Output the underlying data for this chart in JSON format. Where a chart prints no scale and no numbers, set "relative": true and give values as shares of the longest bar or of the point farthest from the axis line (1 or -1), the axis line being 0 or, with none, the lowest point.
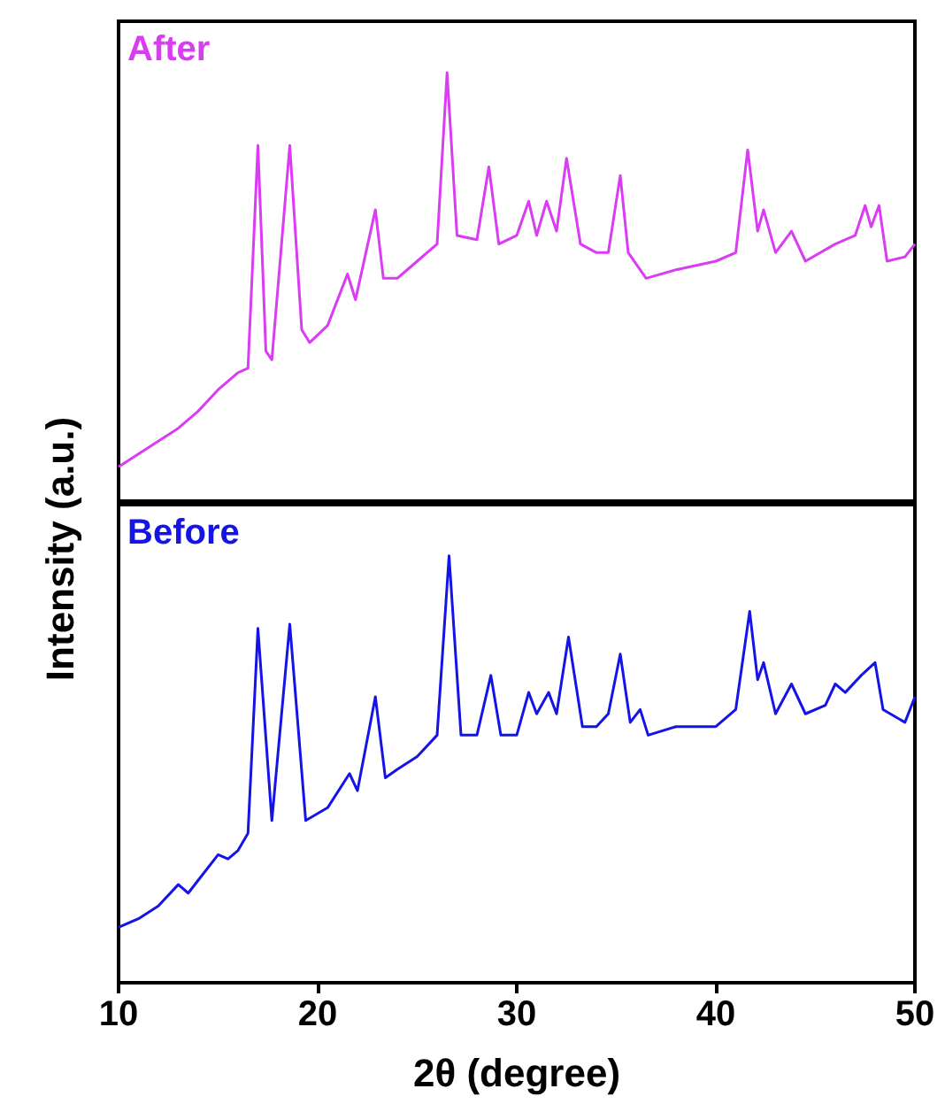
{
  "chart_data": [
    {
      "type": "line",
      "relative": true,
      "ylabel": "Intensity (a.u.)",
      "xlim": [
        10,
        50
      ],
      "xticks": [
        10,
        20,
        30,
        40,
        50
      ],
      "tick_labels": false,
      "x": [
        10,
        11,
        12,
        13,
        14,
        15,
        16,
        16.5,
        17,
        17.4,
        17.7,
        18.6,
        19.2,
        19.6,
        20.5,
        21.5,
        21.9,
        22.9,
        23.3,
        24,
        25,
        26,
        26.5,
        27,
        28,
        28.6,
        29.1,
        30,
        30.6,
        31,
        31.5,
        32,
        32.5,
        33.2,
        34,
        34.6,
        35.2,
        35.6,
        36.5,
        38,
        40,
        41,
        41.6,
        42.1,
        42.4,
        43,
        43.8,
        44.5,
        46,
        47,
        47.5,
        47.8,
        48.2,
        48.6,
        49.5,
        50
      ],
      "series": [
        {
          "name": "After",
          "color": "#d93cf2",
          "values": [
            0.08,
            0.11,
            0.14,
            0.17,
            0.21,
            0.26,
            0.3,
            0.31,
            0.83,
            0.35,
            0.33,
            0.83,
            0.4,
            0.37,
            0.41,
            0.53,
            0.47,
            0.68,
            0.52,
            0.52,
            0.56,
            0.6,
            1,
            0.62,
            0.61,
            0.78,
            0.6,
            0.62,
            0.7,
            0.62,
            0.7,
            0.63,
            0.8,
            0.6,
            0.58,
            0.58,
            0.76,
            0.58,
            0.52,
            0.54,
            0.56,
            0.58,
            0.82,
            0.63,
            0.68,
            0.58,
            0.63,
            0.56,
            0.6,
            0.62,
            0.69,
            0.64,
            0.69,
            0.56,
            0.57,
            0.6
          ]
        }
      ]
    },
    {
      "type": "line",
      "relative": true,
      "xlabel": "2θ (degree)",
      "xlim": [
        10,
        50
      ],
      "xticks": [
        10,
        20,
        30,
        40,
        50
      ],
      "tick_labels": "x",
      "x": [
        10,
        11,
        12,
        13,
        13.5,
        14,
        15,
        15.5,
        16,
        16.5,
        17,
        17.7,
        18.6,
        19.4,
        20.5,
        21.6,
        22,
        22.9,
        23.4,
        24,
        25,
        26,
        26.6,
        27.2,
        28,
        28.7,
        29.2,
        30,
        30.6,
        31,
        31.6,
        32,
        32.6,
        33.3,
        34,
        34.6,
        35.2,
        35.7,
        36.2,
        36.6,
        38,
        40,
        41,
        41.7,
        42.1,
        42.4,
        43,
        43.8,
        44.5,
        45.5,
        46,
        46.5,
        47.3,
        48,
        48.4,
        49.5,
        50
      ],
      "series": [
        {
          "name": "Before",
          "color": "#1414e6",
          "values": [
            0.13,
            0.15,
            0.18,
            0.23,
            0.21,
            0.24,
            0.3,
            0.29,
            0.31,
            0.35,
            0.83,
            0.38,
            0.84,
            0.38,
            0.41,
            0.49,
            0.45,
            0.67,
            0.48,
            0.5,
            0.53,
            0.58,
            1,
            0.58,
            0.58,
            0.72,
            0.58,
            0.58,
            0.68,
            0.63,
            0.68,
            0.63,
            0.81,
            0.6,
            0.6,
            0.63,
            0.77,
            0.61,
            0.64,
            0.58,
            0.6,
            0.6,
            0.64,
            0.87,
            0.71,
            0.75,
            0.63,
            0.7,
            0.63,
            0.65,
            0.7,
            0.68,
            0.72,
            0.75,
            0.64,
            0.61,
            0.67
          ]
        }
      ]
    }
  ]
}
